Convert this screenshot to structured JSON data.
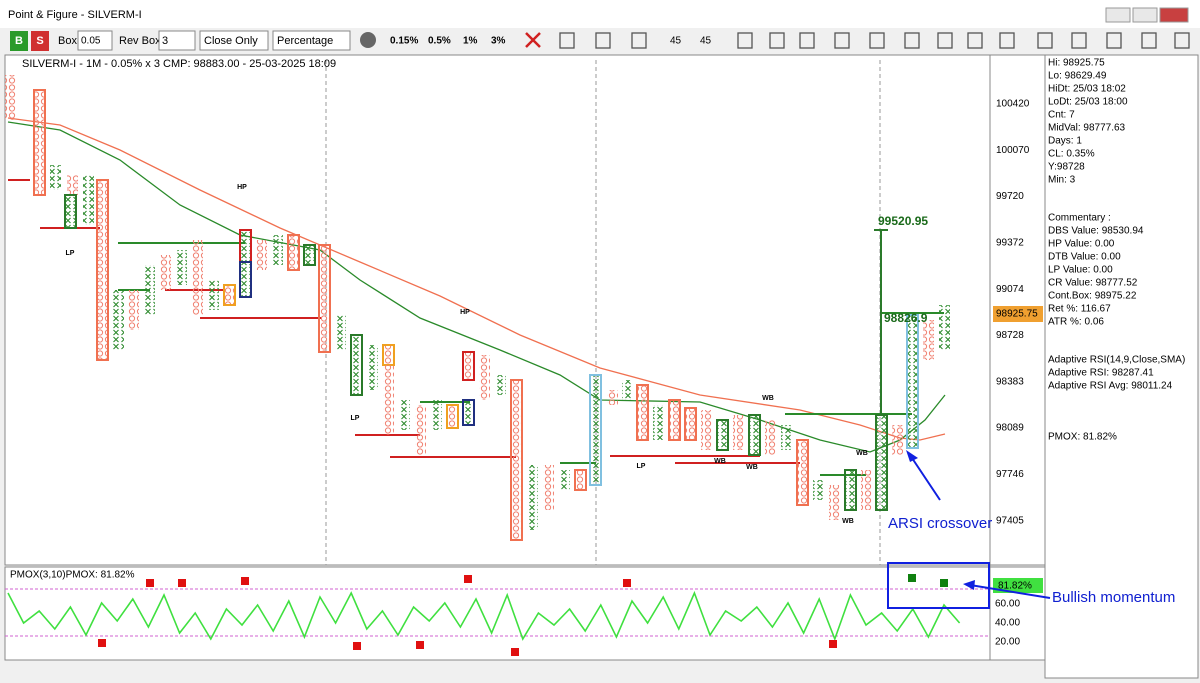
{
  "window": {
    "title": "Point & Figure - SILVERM-I"
  },
  "toolbar": {
    "buttons": [
      "B",
      "S"
    ],
    "box_label": "Box",
    "box_value": "0.05",
    "rev_box_label": "Rev Box",
    "rev_box_value": "3",
    "price_mode": "Close Only",
    "box_type": "Percentage",
    "percent_buttons": [
      "0.15%",
      "0.5%",
      "1%",
      "3%"
    ],
    "angle_buttons": [
      "45",
      "45"
    ]
  },
  "chart": {
    "header": "SILVERM-I - 1M - 0.05% x 3 CMP: 98883.00 - 25-03-2025 18:09",
    "price_ticks": [
      100420,
      100070,
      99720,
      99372,
      99074,
      98728,
      98383,
      98089,
      97746,
      97405
    ],
    "current_price": "98925.75",
    "labels": [
      "HP",
      "LP",
      "HP",
      "LP",
      "LP",
      "WB",
      "WB",
      "WB",
      "WB",
      "WB"
    ],
    "target_labels": [
      "99520.95",
      "98826.9"
    ]
  },
  "pmox": {
    "header": "PMOX(3,10)PMOX: 81.82%",
    "current": "81.82%",
    "ticks": [
      "60.00",
      "40.00",
      "20.00"
    ]
  },
  "info": {
    "stats": [
      "Hi: 98925.75",
      "Lo: 98629.49",
      "HiDt: 25/03 18:02",
      "LoDt: 25/03 18:00",
      "Cnt: 7",
      "MidVal: 98777.63",
      "Days: 1",
      "CL: 0.35%",
      "Y:98728",
      "Min: 3"
    ],
    "commentary": [
      "Commentary :",
      "DBS Value:  98530.94",
      "HP Value: 0.00",
      "DTB Value: 0.00",
      "LP Value: 0.00",
      "CR Value: 98777.52",
      "Cont.Box: 98975.22",
      "Ret %: 116.67",
      "ATR %: 0.06"
    ],
    "rsi": [
      "Adaptive RSI(14,9,Close,SMA)",
      "Adaptive RSI: 98287.41",
      "Adaptive RSI Avg: 98011.24"
    ],
    "pmox": "PMOX: 81.82%"
  },
  "annotations": [
    "ARSI crossover",
    "Bullish momentum"
  ]
}
